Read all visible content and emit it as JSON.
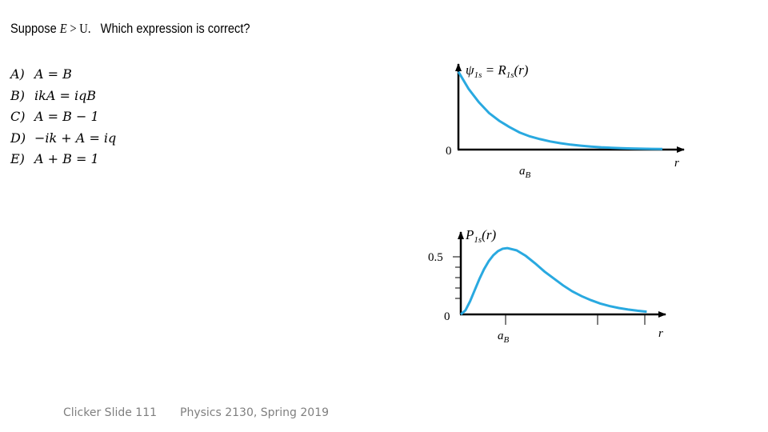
{
  "question": {
    "prefix": "Suppose ",
    "var_e": "E",
    "gt": " > ",
    "var_u": "U.",
    "suffix": "   Which expression is correct?"
  },
  "options": [
    {
      "label": "A)",
      "expr": "A = B"
    },
    {
      "label": "B)",
      "expr": "ikA = iqB"
    },
    {
      "label": "C)",
      "expr": "A = B − 1"
    },
    {
      "label": "D)",
      "expr": "−ik + A = iq"
    },
    {
      "label": "E)",
      "expr": "A + B = 1"
    }
  ],
  "footer": {
    "slide": "Clicker Slide 111",
    "course": "Physics 2130, Spring 2019"
  },
  "colors": {
    "curve": "#29a9e0",
    "axis": "#000000",
    "footer": "#7f7f7f"
  },
  "chart_data": [
    {
      "type": "line",
      "title": "ψ1s = R1s(r)",
      "xlabel": "r",
      "x_tick_labels": [
        "aB"
      ],
      "y_tick_labels": [
        "0"
      ],
      "xlim": [
        0,
        5
      ],
      "ylim": [
        0,
        1.1
      ],
      "series": [
        {
          "x": [
            0,
            0.25,
            0.5,
            0.75,
            1.0,
            1.25,
            1.5,
            1.75,
            2.0,
            2.25,
            2.5,
            2.75,
            3.0,
            3.25,
            3.5,
            3.75,
            4.0,
            4.25,
            4.5,
            4.75,
            5.0
          ],
          "y": [
            1.0,
            0.78,
            0.61,
            0.47,
            0.37,
            0.29,
            0.22,
            0.17,
            0.135,
            0.105,
            0.082,
            0.064,
            0.05,
            0.039,
            0.03,
            0.024,
            0.018,
            0.014,
            0.011,
            0.009,
            0.007
          ]
        }
      ]
    },
    {
      "type": "line",
      "title": "P1s(r)",
      "xlabel": "r",
      "x_tick_labels": [
        "aB"
      ],
      "y_tick_labels": [
        "0",
        "0.5"
      ],
      "xlim": [
        0,
        4.2
      ],
      "ylim": [
        0,
        0.62
      ],
      "series": [
        {
          "x": [
            0,
            0.1,
            0.2,
            0.3,
            0.4,
            0.5,
            0.6,
            0.7,
            0.8,
            0.9,
            1.0,
            1.2,
            1.4,
            1.6,
            1.8,
            2.0,
            2.2,
            2.4,
            2.6,
            2.8,
            3.0,
            3.2,
            3.4,
            3.6,
            3.8,
            4.0
          ],
          "y": [
            0,
            0.033,
            0.107,
            0.198,
            0.288,
            0.368,
            0.434,
            0.483,
            0.516,
            0.536,
            0.541,
            0.523,
            0.477,
            0.416,
            0.35,
            0.293,
            0.237,
            0.188,
            0.149,
            0.116,
            0.089,
            0.068,
            0.052,
            0.04,
            0.03,
            0.022
          ]
        }
      ]
    }
  ]
}
